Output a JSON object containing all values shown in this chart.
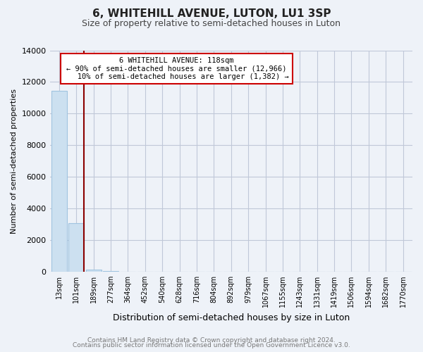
{
  "title": "6, WHITEHILL AVENUE, LUTON, LU1 3SP",
  "subtitle": "Size of property relative to semi-detached houses in Luton",
  "xlabel": "Distribution of semi-detached houses by size in Luton",
  "ylabel": "Number of semi-detached properties",
  "bin_labels": [
    "13sqm",
    "101sqm",
    "189sqm",
    "277sqm",
    "364sqm",
    "452sqm",
    "540sqm",
    "628sqm",
    "716sqm",
    "804sqm",
    "892sqm",
    "979sqm",
    "1067sqm",
    "1155sqm",
    "1243sqm",
    "1331sqm",
    "1419sqm",
    "1506sqm",
    "1594sqm",
    "1682sqm",
    "1770sqm"
  ],
  "bar_values": [
    11450,
    3050,
    120,
    30,
    10,
    5,
    3,
    2,
    1,
    1,
    0,
    0,
    0,
    0,
    0,
    0,
    0,
    0,
    0,
    0,
    0
  ],
  "bar_color": "#cce0f0",
  "bar_edge_color": "#a0c4e0",
  "property_line_color": "#8B0000",
  "annotation_line1": "6 WHITEHILL AVENUE: 118sqm",
  "annotation_line2": "← 90% of semi-detached houses are smaller (12,966)",
  "annotation_line3": "   10% of semi-detached houses are larger (1,382) →",
  "annotation_box_edge_color": "#cc0000",
  "annotation_box_face_color": "#ffffff",
  "ylim": [
    0,
    14000
  ],
  "yticks": [
    0,
    2000,
    4000,
    6000,
    8000,
    10000,
    12000,
    14000
  ],
  "footer_line1": "Contains HM Land Registry data © Crown copyright and database right 2024.",
  "footer_line2": "Contains public sector information licensed under the Open Government Licence v3.0.",
  "background_color": "#eef2f8",
  "plot_background_color": "#eef2f8",
  "grid_color": "#c0c8d8"
}
